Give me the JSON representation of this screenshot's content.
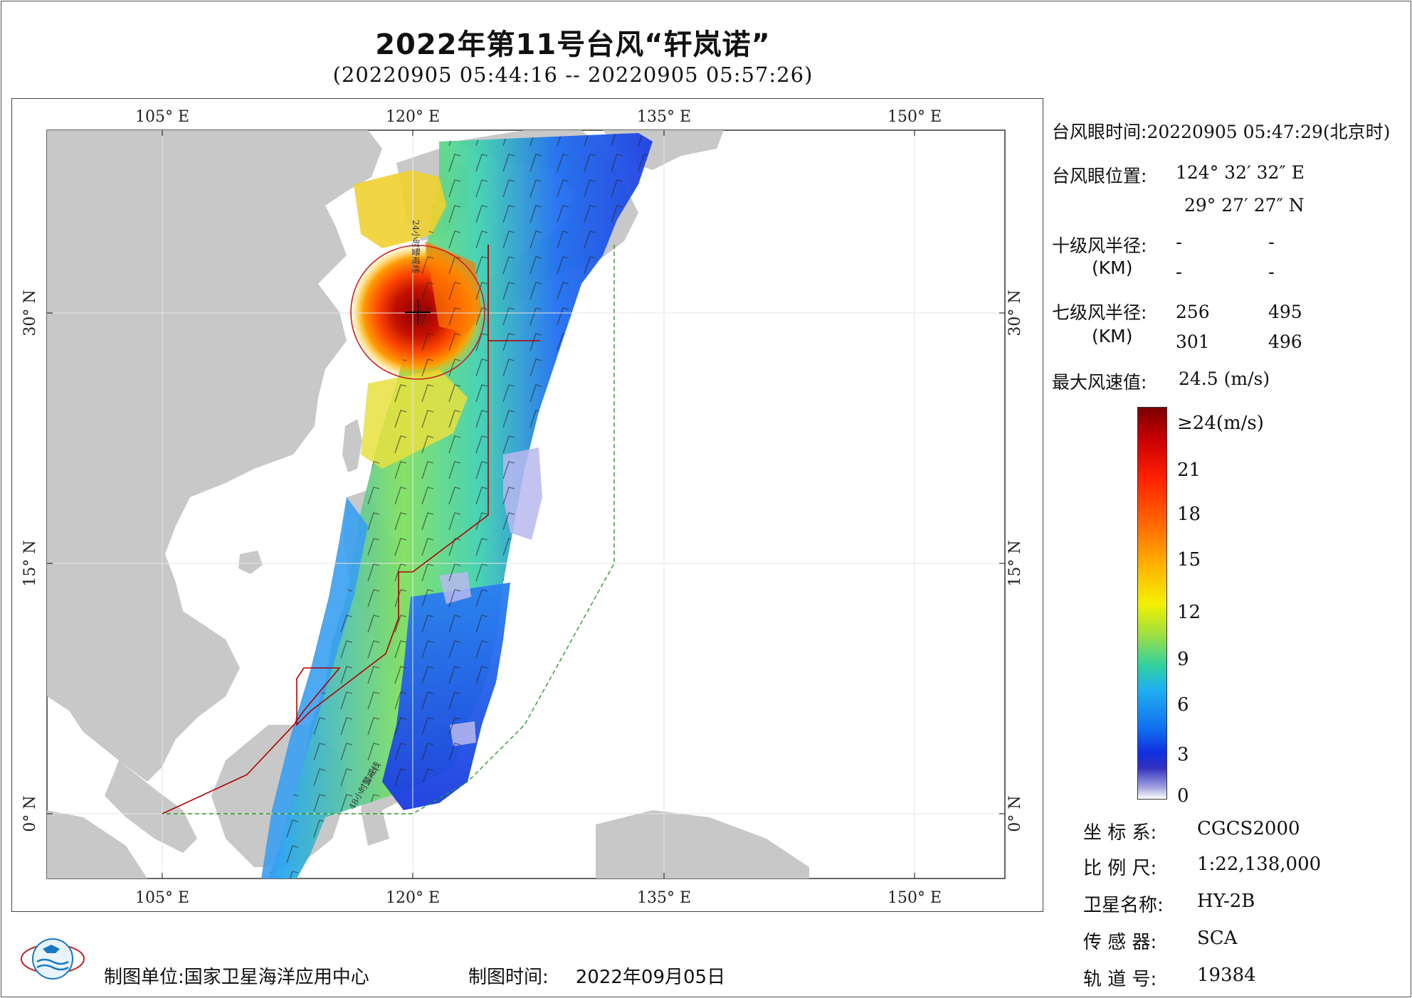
{
  "title": "2022年第11号台风“轩岚诺”",
  "subtitle": "(20220905 05:44:16 -- 20220905 05:57:26)",
  "map": {
    "top_lon_labels": [
      "105° E",
      "120° E",
      "135° E",
      "150° E"
    ],
    "bottom_lon_labels": [
      "105° E",
      "120° E",
      "135° E",
      "150° E"
    ],
    "lat_labels": [
      "30° N",
      "15° N",
      "0° N"
    ],
    "line_labels": [
      "24小时警戒线",
      "48小时警戒线"
    ]
  },
  "info": {
    "eye_time_label": "台风眼时间:",
    "eye_time_value": "20220905 05:47:29(北京时)",
    "eye_pos_label": "台风眼位置:",
    "eye_lon": "124° 32′ 32″ E",
    "eye_lat": "29° 27′ 27″ N",
    "r10_label": "十级风半径:",
    "r10_unit": "(KM)",
    "r10_values": [
      "-",
      "-",
      "-",
      "-"
    ],
    "r7_label": "七级风半径:",
    "r7_unit": "(KM)",
    "r7_values": [
      "256",
      "495",
      "301",
      "496"
    ],
    "max_wind_label": "最大风速值:",
    "max_wind_value": "24.5  (m/s)"
  },
  "colorbar": {
    "labels": [
      "≥24(m/s)",
      "21",
      "18",
      "15",
      "12",
      "9",
      "6",
      "3",
      "0"
    ]
  },
  "meta": {
    "crs_label": "坐 标 系:",
    "crs_value": "CGCS2000",
    "scale_label": "比 例 尺:",
    "scale_value": "1:22,138,000",
    "sat_label": "卫星名称:",
    "sat_value": "HY-2B",
    "sensor_label": "传 感 器:",
    "sensor_value": "SCA",
    "orbit_label": "轨 道 号:",
    "orbit_value": "19384"
  },
  "footer": {
    "unit_label": "制图单位:",
    "unit_value": "国家卫星海洋应用中心",
    "date_label": "制图时间:",
    "date_value": "2022年09月05日"
  },
  "colors": {
    "land": "#c8c8c8",
    "warning_24h": "#b00000",
    "warning_48h": "#2a9a2a",
    "circle": "#d02020"
  }
}
